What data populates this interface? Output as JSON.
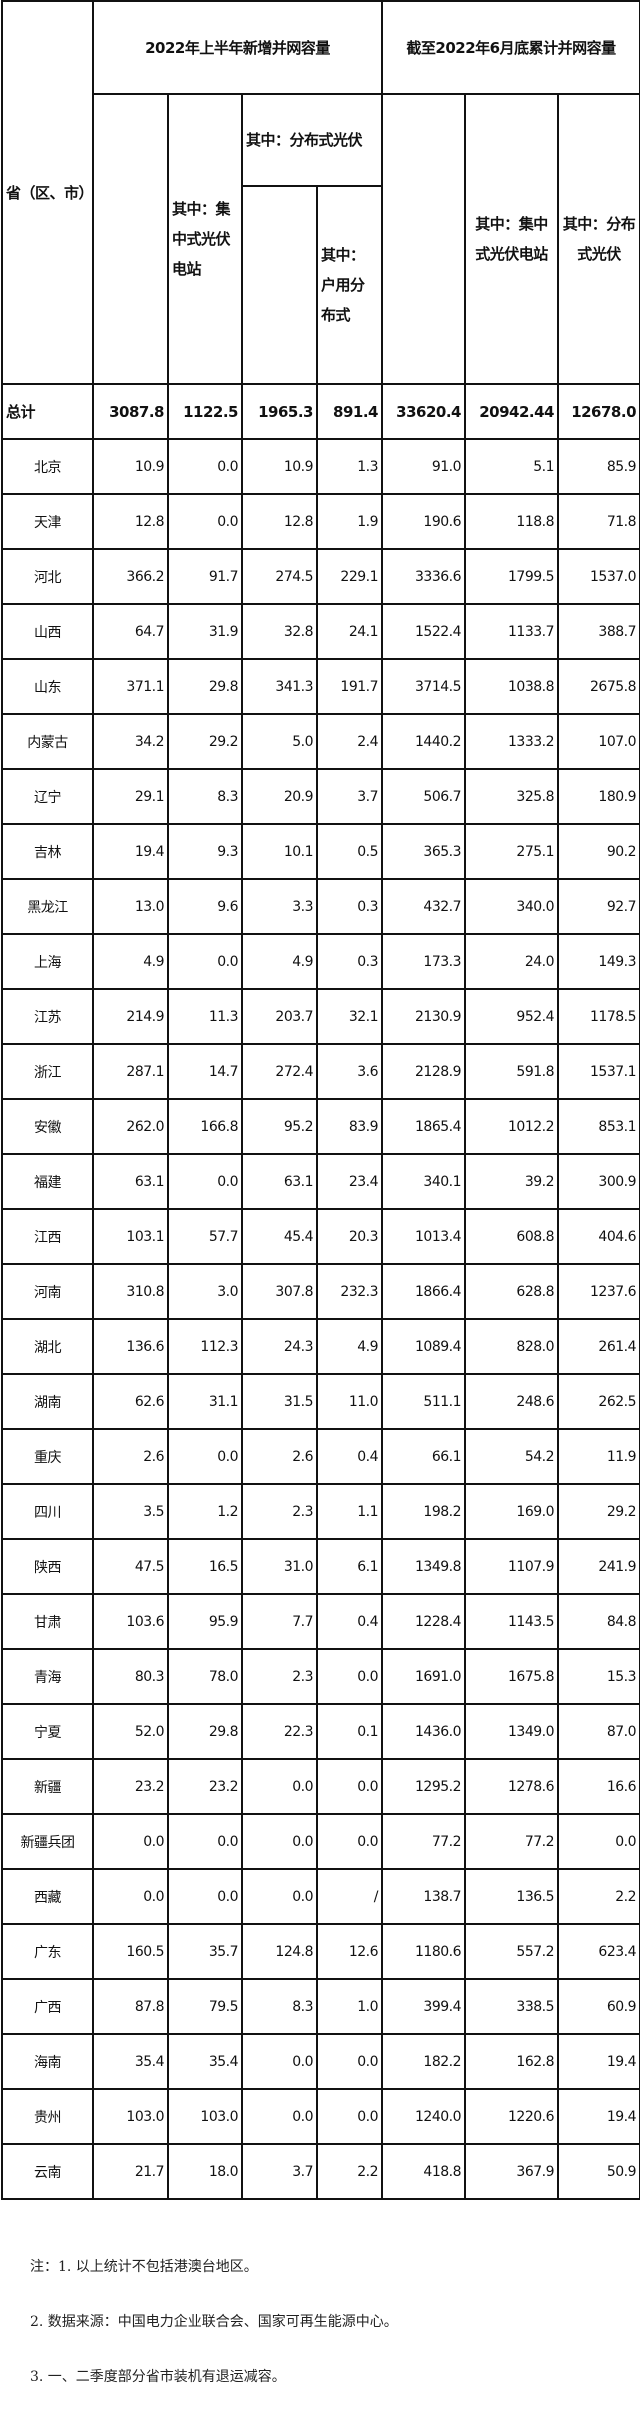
{
  "header": {
    "province": "省（区、市）",
    "group1": "2022年上半年新增并网容量",
    "group2": "截至2022年6月底累计并网容量",
    "g1_centralized": "其中：集中式光伏电站",
    "g1_distributed": "其中：分布式光伏",
    "g1_household": "其中：户用分布式",
    "g2_centralized": "其中：集中式光伏电站",
    "g2_distributed": "其中：分布式光伏"
  },
  "rows": [
    [
      "总计",
      "3087.8",
      "1122.5",
      "1965.3",
      "891.4",
      "33620.4",
      "20942.44",
      "12678.0"
    ],
    [
      "北京",
      "10.9",
      "0.0",
      "10.9",
      "1.3",
      "91.0",
      "5.1",
      "85.9"
    ],
    [
      "天津",
      "12.8",
      "0.0",
      "12.8",
      "1.9",
      "190.6",
      "118.8",
      "71.8"
    ],
    [
      "河北",
      "366.2",
      "91.7",
      "274.5",
      "229.1",
      "3336.6",
      "1799.5",
      "1537.0"
    ],
    [
      "山西",
      "64.7",
      "31.9",
      "32.8",
      "24.1",
      "1522.4",
      "1133.7",
      "388.7"
    ],
    [
      "山东",
      "371.1",
      "29.8",
      "341.3",
      "191.7",
      "3714.5",
      "1038.8",
      "2675.8"
    ],
    [
      "内蒙古",
      "34.2",
      "29.2",
      "5.0",
      "2.4",
      "1440.2",
      "1333.2",
      "107.0"
    ],
    [
      "辽宁",
      "29.1",
      "8.3",
      "20.9",
      "3.7",
      "506.7",
      "325.8",
      "180.9"
    ],
    [
      "吉林",
      "19.4",
      "9.3",
      "10.1",
      "0.5",
      "365.3",
      "275.1",
      "90.2"
    ],
    [
      "黑龙江",
      "13.0",
      "9.6",
      "3.3",
      "0.3",
      "432.7",
      "340.0",
      "92.7"
    ],
    [
      "上海",
      "4.9",
      "0.0",
      "4.9",
      "0.3",
      "173.3",
      "24.0",
      "149.3"
    ],
    [
      "江苏",
      "214.9",
      "11.3",
      "203.7",
      "32.1",
      "2130.9",
      "952.4",
      "1178.5"
    ],
    [
      "浙江",
      "287.1",
      "14.7",
      "272.4",
      "3.6",
      "2128.9",
      "591.8",
      "1537.1"
    ],
    [
      "安徽",
      "262.0",
      "166.8",
      "95.2",
      "83.9",
      "1865.4",
      "1012.2",
      "853.1"
    ],
    [
      "福建",
      "63.1",
      "0.0",
      "63.1",
      "23.4",
      "340.1",
      "39.2",
      "300.9"
    ],
    [
      "江西",
      "103.1",
      "57.7",
      "45.4",
      "20.3",
      "1013.4",
      "608.8",
      "404.6"
    ],
    [
      "河南",
      "310.8",
      "3.0",
      "307.8",
      "232.3",
      "1866.4",
      "628.8",
      "1237.6"
    ],
    [
      "湖北",
      "136.6",
      "112.3",
      "24.3",
      "4.9",
      "1089.4",
      "828.0",
      "261.4"
    ],
    [
      "湖南",
      "62.6",
      "31.1",
      "31.5",
      "11.0",
      "511.1",
      "248.6",
      "262.5"
    ],
    [
      "重庆",
      "2.6",
      "0.0",
      "2.6",
      "0.4",
      "66.1",
      "54.2",
      "11.9"
    ],
    [
      "四川",
      "3.5",
      "1.2",
      "2.3",
      "1.1",
      "198.2",
      "169.0",
      "29.2"
    ],
    [
      "陕西",
      "47.5",
      "16.5",
      "31.0",
      "6.1",
      "1349.8",
      "1107.9",
      "241.9"
    ],
    [
      "甘肃",
      "103.6",
      "95.9",
      "7.7",
      "0.4",
      "1228.4",
      "1143.5",
      "84.8"
    ],
    [
      "青海",
      "80.3",
      "78.0",
      "2.3",
      "0.0",
      "1691.0",
      "1675.8",
      "15.3"
    ],
    [
      "宁夏",
      "52.0",
      "29.8",
      "22.3",
      "0.1",
      "1436.0",
      "1349.0",
      "87.0"
    ],
    [
      "新疆",
      "23.2",
      "23.2",
      "0.0",
      "0.0",
      "1295.2",
      "1278.6",
      "16.6"
    ],
    [
      "新疆兵团",
      "0.0",
      "0.0",
      "0.0",
      "0.0",
      "77.2",
      "77.2",
      "0.0"
    ],
    [
      "西藏",
      "0.0",
      "0.0",
      "0.0",
      "/",
      "138.7",
      "136.5",
      "2.2"
    ],
    [
      "广东",
      "160.5",
      "35.7",
      "124.8",
      "12.6",
      "1180.6",
      "557.2",
      "623.4"
    ],
    [
      "广西",
      "87.8",
      "79.5",
      "8.3",
      "1.0",
      "399.4",
      "338.5",
      "60.9"
    ],
    [
      "海南",
      "35.4",
      "35.4",
      "0.0",
      "0.0",
      "182.2",
      "162.8",
      "19.4"
    ],
    [
      "贵州",
      "103.0",
      "103.0",
      "0.0",
      "0.0",
      "1240.0",
      "1220.6",
      "19.4"
    ],
    [
      "云南",
      "21.7",
      "18.0",
      "3.7",
      "2.2",
      "418.8",
      "367.9",
      "50.9"
    ]
  ],
  "notes": [
    "注：1. 以上统计不包括港澳台地区。",
    "2. 数据来源：中国电力企业联合会、国家可再生能源中心。",
    "3. 一、二季度部分省市装机有退运减容。"
  ]
}
